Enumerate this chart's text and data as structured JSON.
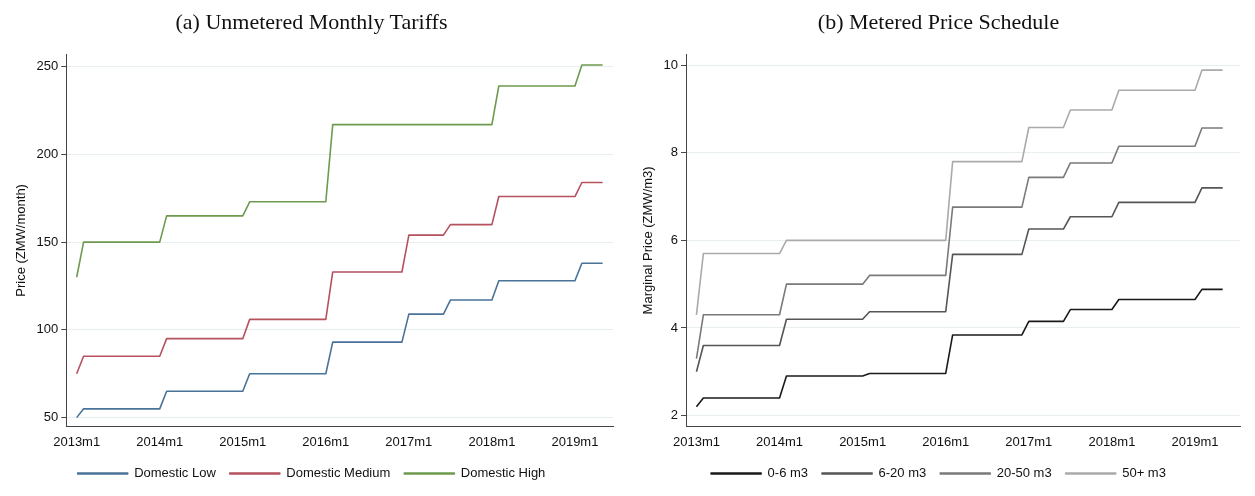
{
  "chart_data": [
    {
      "type": "line",
      "title": "(a) Unmetered Monthly Tariffs",
      "ylabel": "Price (ZMW/month)",
      "xlim": [
        "2012-11-16",
        "2019-06-16"
      ],
      "xticks": [
        {
          "value": "2013-01",
          "label": "2013m1"
        },
        {
          "value": "2014-01",
          "label": "2014m1"
        },
        {
          "value": "2015-01",
          "label": "2015m1"
        },
        {
          "value": "2016-01",
          "label": "2016m1"
        },
        {
          "value": "2017-01",
          "label": "2017m1"
        },
        {
          "value": "2018-01",
          "label": "2018m1"
        },
        {
          "value": "2019-01",
          "label": "2019m1"
        }
      ],
      "ylim": [
        45,
        257
      ],
      "yticks": [
        50,
        100,
        150,
        200,
        250
      ],
      "grid": "y",
      "legend": "bottom",
      "marker": "none",
      "line_style": "solid",
      "series": [
        {
          "name": "Domestic Low",
          "color": "#4a739a",
          "x": [
            "2013-01",
            "2013-02",
            "2014-01",
            "2014-02",
            "2015-01",
            "2015-02",
            "2016-01",
            "2016-02",
            "2016-12",
            "2017-01",
            "2017-06",
            "2017-07",
            "2018-01",
            "2018-02",
            "2019-01",
            "2019-02",
            "2019-05"
          ],
          "values": [
            50,
            55,
            55,
            65,
            65,
            75,
            75,
            93,
            93,
            109,
            109,
            117,
            117,
            128,
            128,
            138,
            138
          ]
        },
        {
          "name": "Domestic Medium",
          "color": "#b5525e",
          "x": [
            "2013-01",
            "2013-02",
            "2014-01",
            "2014-02",
            "2015-01",
            "2015-02",
            "2016-01",
            "2016-02",
            "2016-12",
            "2017-01",
            "2017-06",
            "2017-07",
            "2018-01",
            "2018-02",
            "2019-01",
            "2019-02",
            "2019-05"
          ],
          "values": [
            75,
            85,
            85,
            95,
            95,
            106,
            106,
            133,
            133,
            154,
            154,
            160,
            160,
            176,
            176,
            184,
            184
          ]
        },
        {
          "name": "Domestic High",
          "color": "#6d9a4e",
          "x": [
            "2013-01",
            "2013-02",
            "2014-01",
            "2014-02",
            "2015-01",
            "2015-02",
            "2016-01",
            "2016-02",
            "2018-01",
            "2018-02",
            "2019-01",
            "2019-02",
            "2019-05"
          ],
          "values": [
            130,
            150,
            150,
            165,
            165,
            173,
            173,
            217,
            217,
            239,
            239,
            251,
            251
          ]
        }
      ]
    },
    {
      "type": "line",
      "title": "(b) Metered Price Schedule",
      "ylabel": "Marginal Price (ZMW/m3)",
      "xlim": [
        "2012-11-16",
        "2019-07-16"
      ],
      "xticks": [
        {
          "value": "2013-01",
          "label": "2013m1"
        },
        {
          "value": "2014-01",
          "label": "2014m1"
        },
        {
          "value": "2015-01",
          "label": "2015m1"
        },
        {
          "value": "2016-01",
          "label": "2016m1"
        },
        {
          "value": "2017-01",
          "label": "2017m1"
        },
        {
          "value": "2018-01",
          "label": "2018m1"
        },
        {
          "value": "2019-01",
          "label": "2019m1"
        }
      ],
      "ylim": [
        1.75,
        10.25
      ],
      "yticks": [
        2,
        4,
        6,
        8,
        10
      ],
      "grid": "y",
      "legend": "bottom",
      "marker": "none",
      "line_style": "solid",
      "series": [
        {
          "name": "0-6 m3",
          "color": "#1a1a1a",
          "x": [
            "2013-01",
            "2013-02",
            "2014-01",
            "2014-02",
            "2015-01",
            "2015-02",
            "2016-01",
            "2016-02",
            "2016-12",
            "2017-01",
            "2017-06",
            "2017-07",
            "2018-01",
            "2018-02",
            "2019-01",
            "2019-02",
            "2019-05"
          ],
          "values": [
            2.2,
            2.4,
            2.4,
            2.9,
            2.9,
            2.96,
            2.96,
            3.84,
            3.84,
            4.15,
            4.15,
            4.42,
            4.42,
            4.65,
            4.65,
            4.88,
            4.88
          ]
        },
        {
          "name": "6-20 m3",
          "color": "#555555",
          "x": [
            "2013-01",
            "2013-02",
            "2014-01",
            "2014-02",
            "2015-01",
            "2015-02",
            "2016-01",
            "2016-02",
            "2016-12",
            "2017-01",
            "2017-06",
            "2017-07",
            "2018-01",
            "2018-02",
            "2019-01",
            "2019-02",
            "2019-05"
          ],
          "values": [
            3.0,
            3.6,
            3.6,
            4.2,
            4.2,
            4.37,
            4.37,
            5.68,
            5.68,
            6.26,
            6.26,
            6.54,
            6.54,
            6.87,
            6.87,
            7.2,
            7.2
          ]
        },
        {
          "name": "20-50 m3",
          "color": "#7a7a7a",
          "x": [
            "2013-01",
            "2013-02",
            "2014-01",
            "2014-02",
            "2015-01",
            "2015-02",
            "2016-01",
            "2016-02",
            "2016-12",
            "2017-01",
            "2017-06",
            "2017-07",
            "2018-01",
            "2018-02",
            "2019-01",
            "2019-02",
            "2019-05"
          ],
          "values": [
            3.3,
            4.3,
            4.3,
            5.0,
            5.0,
            5.2,
            5.2,
            6.76,
            6.76,
            7.44,
            7.44,
            7.77,
            7.77,
            8.15,
            8.15,
            8.57,
            8.57
          ]
        },
        {
          "name": "50+ m3",
          "color": "#aaaaaa",
          "x": [
            "2013-01",
            "2013-02",
            "2014-01",
            "2014-02",
            "2016-01",
            "2016-02",
            "2016-12",
            "2017-01",
            "2017-06",
            "2017-07",
            "2018-01",
            "2018-02",
            "2019-01",
            "2019-02",
            "2019-05"
          ],
          "values": [
            4.3,
            5.7,
            5.7,
            6.0,
            6.0,
            7.8,
            7.8,
            8.58,
            8.58,
            8.98,
            8.98,
            9.43,
            9.43,
            9.89,
            9.89
          ]
        }
      ]
    }
  ]
}
